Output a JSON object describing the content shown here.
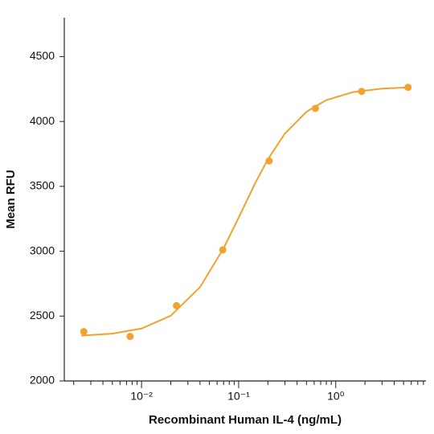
{
  "chart_data": {
    "type": "scatter",
    "x_label": "Recombinant Human IL-4 (ng/mL)",
    "y_label": "Mean RFU",
    "log_x": true,
    "color": "#f2a22e",
    "x": [
      0.00254,
      0.00762,
      0.0229,
      0.0686,
      0.206,
      0.617,
      1.85,
      5.56
    ],
    "values": [
      2380,
      2343,
      2580,
      3010,
      3696,
      4101,
      4232,
      4263
    ],
    "fit": {
      "x": [
        0.0024,
        0.005,
        0.01,
        0.02,
        0.04,
        0.07,
        0.1,
        0.15,
        0.2,
        0.3,
        0.5,
        0.8,
        1.5,
        3,
        5.6
      ],
      "values": [
        2349,
        2365,
        2404,
        2503,
        2723,
        3023,
        3259,
        3533,
        3708,
        3908,
        4075,
        4165,
        4226,
        4253,
        4263
      ]
    },
    "xlim": [
      0.0016,
      8.5
    ],
    "ylim": [
      2000,
      4800
    ],
    "xticks": [
      {
        "value": 0.01,
        "label": "10⁻²"
      },
      {
        "value": 0.1,
        "label": "10⁻¹"
      },
      {
        "value": 1,
        "label": "10⁰"
      }
    ],
    "yticks": [
      2000,
      2500,
      3000,
      3500,
      4000,
      4500
    ]
  }
}
